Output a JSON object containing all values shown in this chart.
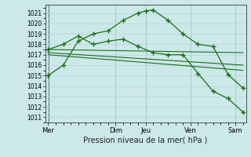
{
  "background_color": "#cce8e8",
  "line_color": "#1a6e1a",
  "xlabel": "Pression niveau de la mer( hPa )",
  "ylim": [
    1010.5,
    1021.8
  ],
  "yticks": [
    1011,
    1012,
    1013,
    1014,
    1015,
    1016,
    1017,
    1018,
    1019,
    1020,
    1021
  ],
  "xtick_labels": [
    "Mer",
    "Dim",
    "Jeu",
    "Ven",
    "Sam"
  ],
  "xtick_positions": [
    0,
    4.5,
    6.5,
    9.5,
    12.5
  ],
  "xlim": [
    -0.2,
    13.2
  ],
  "vline_positions": [
    0.05,
    4.5,
    6.5,
    9.5,
    12.5
  ],
  "line1_x": [
    0,
    1,
    2,
    3,
    4,
    5,
    6,
    6.5,
    7,
    8,
    9,
    10,
    11,
    12,
    13
  ],
  "line1_y": [
    1015.0,
    1016.0,
    1018.3,
    1019.0,
    1019.3,
    1020.3,
    1021.0,
    1021.2,
    1021.3,
    1020.3,
    1019.0,
    1018.0,
    1017.8,
    1015.1,
    1013.8
  ],
  "line2_x": [
    0,
    1,
    2,
    3,
    4,
    5,
    6,
    7,
    8,
    9,
    10,
    11,
    12,
    13
  ],
  "line2_y": [
    1017.5,
    1018.0,
    1018.8,
    1018.0,
    1018.3,
    1018.5,
    1017.8,
    1017.2,
    1017.0,
    1017.0,
    1015.2,
    1013.5,
    1012.8,
    1011.5
  ],
  "line3_x": [
    0,
    13
  ],
  "line3_y": [
    1017.5,
    1017.2
  ],
  "line4_x": [
    0,
    13
  ],
  "line4_y": [
    1017.2,
    1016.0
  ],
  "line5_x": [
    0,
    13
  ],
  "line5_y": [
    1017.0,
    1015.5
  ],
  "grid_major_color": "#b8d8d8",
  "grid_minor_color": "#d0e8e8"
}
